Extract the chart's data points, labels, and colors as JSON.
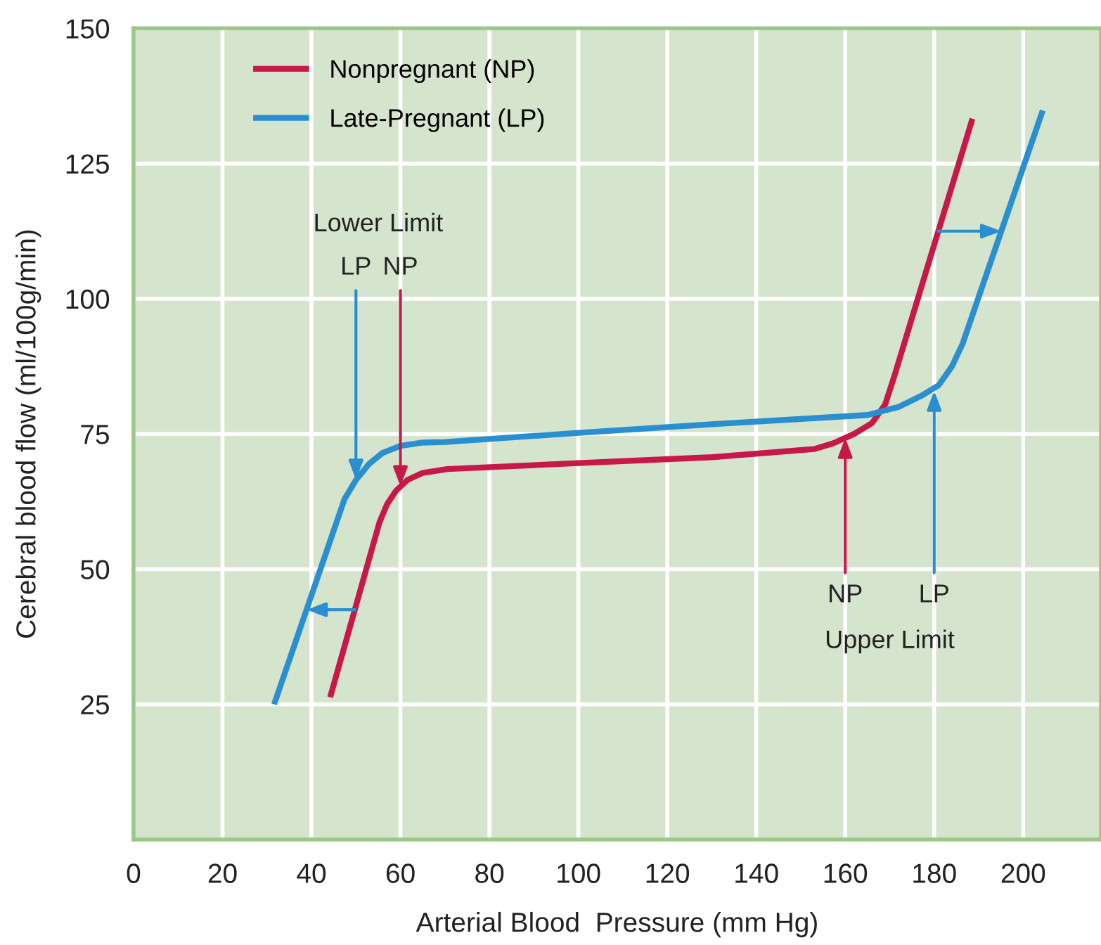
{
  "chart_data": {
    "type": "line",
    "xlabel": "Arterial Blood  Pressure (mm Hg)",
    "ylabel": "Cerebral blood flow (ml/100g/min)",
    "series": [
      {
        "name": "Nonpregnant (NP)",
        "color": "#c8184a",
        "x": [
          44.2,
          55.3,
          57,
          59,
          61.6,
          65,
          70.5,
          100,
          130,
          153,
          157.4,
          162,
          166,
          169,
          171,
          188.6
        ],
        "values": [
          26.3,
          58.7,
          62,
          64.5,
          66.5,
          67.8,
          68.5,
          69.6,
          70.7,
          72.2,
          73.3,
          75,
          77,
          80.5,
          85.6,
          133.3
        ]
      },
      {
        "name": "Late-Pregnant (LP)",
        "color": "#2a8fd0",
        "x": [
          31.6,
          47.4,
          50,
          53,
          56,
          60,
          65,
          70,
          100,
          130,
          165,
          172,
          177,
          181,
          184,
          186.4,
          204.4
        ],
        "values": [
          25,
          62.9,
          66.5,
          69.5,
          71.5,
          72.8,
          73.4,
          73.5,
          75.2,
          76.8,
          78.5,
          80,
          82,
          84,
          87.5,
          91.7,
          134.8
        ]
      }
    ],
    "annotations": [
      "Lower Limit",
      {
        "text": "LP",
        "x": 50,
        "y": 66.5
      },
      {
        "text": "NP",
        "x": 60,
        "y": 65.3
      },
      {
        "text": "NP",
        "x": 160,
        "y": 74.3
      },
      {
        "text": "LP",
        "x": 180,
        "y": 83
      },
      "Upper Limit"
    ],
    "xlim": [
      0,
      217.5
    ],
    "xticks": [
      0,
      20,
      40,
      60,
      80,
      100,
      120,
      140,
      160,
      180,
      200
    ],
    "ylim": [
      0,
      150
    ],
    "yticks": [
      25,
      50,
      75,
      100,
      125,
      150
    ],
    "grid": true,
    "legend": "top left",
    "marker": "none",
    "line_style": "solid"
  }
}
